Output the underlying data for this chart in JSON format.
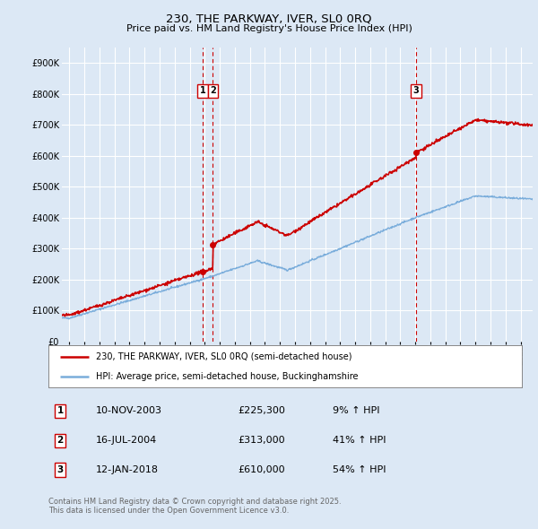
{
  "title": "230, THE PARKWAY, IVER, SL0 0RQ",
  "subtitle": "Price paid vs. HM Land Registry's House Price Index (HPI)",
  "legend_line1": "230, THE PARKWAY, IVER, SL0 0RQ (semi-detached house)",
  "legend_line2": "HPI: Average price, semi-detached house, Buckinghamshire",
  "footer_line1": "Contains HM Land Registry data © Crown copyright and database right 2025.",
  "footer_line2": "This data is licensed under the Open Government Licence v3.0.",
  "transactions": [
    {
      "label": "1",
      "date": "10-NOV-2003",
      "price": "£225,300",
      "hpi_pct": "9% ↑ HPI",
      "x": 2003.86,
      "price_val": 225300
    },
    {
      "label": "2",
      "date": "16-JUL-2004",
      "price": "£313,000",
      "hpi_pct": "41% ↑ HPI",
      "x": 2004.54,
      "price_val": 313000
    },
    {
      "label": "3",
      "date": "12-JAN-2018",
      "price": "£610,000",
      "hpi_pct": "54% ↑ HPI",
      "x": 2018.04,
      "price_val": 610000
    }
  ],
  "background_color": "#dce8f5",
  "plot_bg_color": "#dce8f5",
  "grid_color": "#ffffff",
  "red_line_color": "#cc0000",
  "blue_line_color": "#7aaddb",
  "dashed_line_color": "#cc0000",
  "ylim": [
    0,
    950000
  ],
  "yticks": [
    0,
    100000,
    200000,
    300000,
    400000,
    500000,
    600000,
    700000,
    800000,
    900000
  ],
  "ytick_labels": [
    "£0",
    "£100K",
    "£200K",
    "£300K",
    "£400K",
    "£500K",
    "£600K",
    "£700K",
    "£800K",
    "£900K"
  ],
  "xlim_start": 1994.5,
  "xlim_end": 2025.8
}
